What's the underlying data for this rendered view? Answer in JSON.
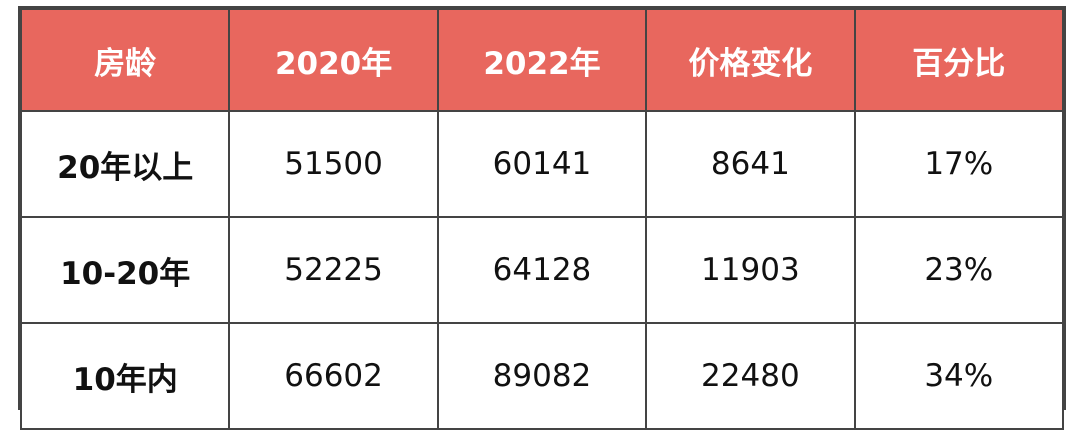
{
  "table": {
    "headers": [
      "房龄",
      "2020年",
      "2022年",
      "价格变化",
      "百分比"
    ],
    "rows": [
      [
        "20年以上",
        "51500",
        "60141",
        "8641",
        "17%"
      ],
      [
        "10-20年",
        "52225",
        "64128",
        "11903",
        "23%"
      ],
      [
        "10年内",
        "66602",
        "89082",
        "22480",
        "34%"
      ]
    ]
  },
  "colors": {
    "header_bg": "#e8675e",
    "header_text": "#ffffff",
    "border": "#444444"
  }
}
